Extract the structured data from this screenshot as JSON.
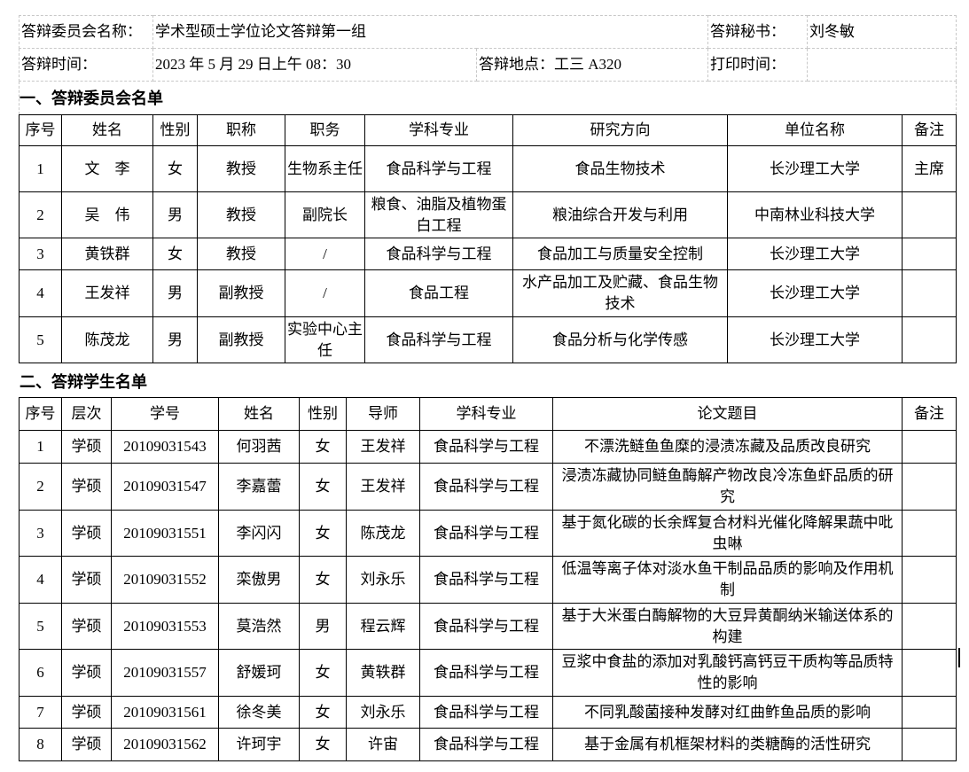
{
  "header": {
    "committee_label": "答辩委员会名称：",
    "committee_name": "学术型硕士学位论文答辩第一组",
    "secretary_label": "答辩秘书：",
    "secretary": "刘冬敏",
    "time_label": "答辩时间：",
    "time": "2023 年 5 月 29 日上午 08：30",
    "place": "答辩地点：工三 A320",
    "print_label": "打印时间：",
    "print_time": ""
  },
  "committee": {
    "title": "一、答辩委员会名单",
    "columns": [
      "序号",
      "姓名",
      "性别",
      "职称",
      "职务",
      "学科专业",
      "研究方向",
      "单位名称",
      "备注"
    ],
    "rows": [
      [
        "1",
        "文　李",
        "女",
        "教授",
        "生物系主任",
        "食品科学与工程",
        "食品生物技术",
        "长沙理工大学",
        "主席"
      ],
      [
        "2",
        "吴　伟",
        "男",
        "教授",
        "副院长",
        "粮食、油脂及植物蛋白工程",
        "粮油综合开发与利用",
        "中南林业科技大学",
        ""
      ],
      [
        "3",
        "黄铁群",
        "女",
        "教授",
        "/",
        "食品科学与工程",
        "食品加工与质量安全控制",
        "长沙理工大学",
        ""
      ],
      [
        "4",
        "王发祥",
        "男",
        "副教授",
        "/",
        "食品工程",
        "水产品加工及贮藏、食品生物技术",
        "长沙理工大学",
        ""
      ],
      [
        "5",
        "陈茂龙",
        "男",
        "副教授",
        "实验中心主任",
        "食品科学与工程",
        "食品分析与化学传感",
        "长沙理工大学",
        ""
      ]
    ]
  },
  "students": {
    "title": "二、答辩学生名单",
    "columns": [
      "序号",
      "层次",
      "学号",
      "姓名",
      "性别",
      "导师",
      "学科专业",
      "论文题目",
      "备注"
    ],
    "rows": [
      [
        "1",
        "学硕",
        "20109031543",
        "何羽茜",
        "女",
        "王发祥",
        "食品科学与工程",
        "不漂洗鲢鱼鱼糜的浸渍冻藏及品质改良研究",
        ""
      ],
      [
        "2",
        "学硕",
        "20109031547",
        "李嘉蕾",
        "女",
        "王发祥",
        "食品科学与工程",
        "浸渍冻藏协同鲢鱼酶解产物改良冷冻鱼虾品质的研究",
        ""
      ],
      [
        "3",
        "学硕",
        "20109031551",
        "李闪闪",
        "女",
        "陈茂龙",
        "食品科学与工程",
        "基于氮化碳的长余辉复合材料光催化降解果蔬中吡虫啉",
        ""
      ],
      [
        "4",
        "学硕",
        "20109031552",
        "栾傲男",
        "女",
        "刘永乐",
        "食品科学与工程",
        "低温等离子体对淡水鱼干制品品质的影响及作用机制",
        ""
      ],
      [
        "5",
        "学硕",
        "20109031553",
        "莫浩然",
        "男",
        "程云辉",
        "食品科学与工程",
        "基于大米蛋白酶解物的大豆异黄酮纳米输送体系的构建",
        ""
      ],
      [
        "6",
        "学硕",
        "20109031557",
        "舒媛珂",
        "女",
        "黄轶群",
        "食品科学与工程",
        "豆浆中食盐的添加对乳酸钙高钙豆干质构等品质特性的影响",
        ""
      ],
      [
        "7",
        "学硕",
        "20109031561",
        "徐冬美",
        "女",
        "刘永乐",
        "食品科学与工程",
        "不同乳酸菌接种发酵对红曲鲊鱼品质的影响",
        ""
      ],
      [
        "8",
        "学硕",
        "20109031562",
        "许珂宇",
        "女",
        "许宙",
        "食品科学与工程",
        "基于金属有机框架材料的类糖酶的活性研究",
        ""
      ]
    ]
  }
}
